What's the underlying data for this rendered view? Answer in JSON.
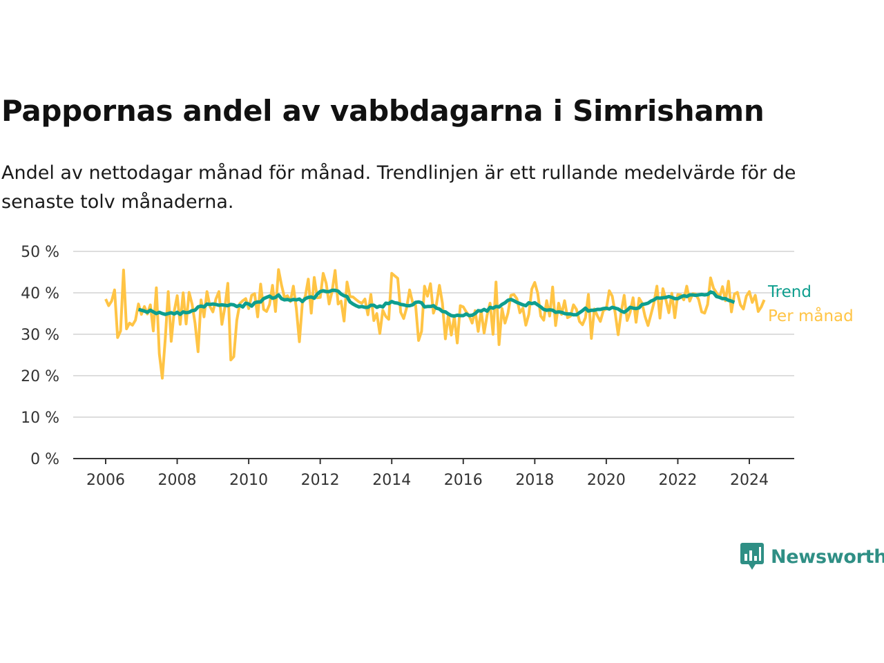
{
  "title": "Pappornas andel av vabbdagarna i Simrishamn",
  "subtitle": "Andel av nettodagar månad för månad. Trendlinjen är ett rullande medelvärde för de senaste tolv månaderna.",
  "brand": {
    "name": "Newsworthy",
    "color": "#2f8f85",
    "icon": "newsworthy-logo-icon"
  },
  "chart_data": {
    "type": "line",
    "ylim": [
      0,
      50
    ],
    "yticks": [
      0,
      10,
      20,
      30,
      40,
      50
    ],
    "ytick_labels": [
      "0 %",
      "10 %",
      "20 %",
      "30 %",
      "40 %",
      "50 %"
    ],
    "xlim": [
      2006,
      2024.5
    ],
    "xticks": [
      2006,
      2008,
      2010,
      2012,
      2014,
      2016,
      2018,
      2020,
      2022,
      2024
    ],
    "xtick_labels": [
      "2006",
      "2008",
      "2010",
      "2012",
      "2014",
      "2016",
      "2018",
      "2020",
      "2022",
      "2024"
    ],
    "grid": true,
    "legend": "right",
    "start": "2006-01",
    "series": [
      {
        "name": "Trend",
        "color": "#0e9e8e",
        "start": "2006-12",
        "values": [
          36,
          35.8,
          35.6,
          35.3,
          35.8,
          35.4,
          35,
          35.3,
          35,
          34.8,
          35,
          35.2,
          34.9,
          35.3,
          34.8,
          35.4,
          35.2,
          35.3,
          35.7,
          35.8,
          36.6,
          36.8,
          36.6,
          37.3,
          37.2,
          37.3,
          37.2,
          37,
          37.1,
          37,
          36.9,
          37.2,
          37.1,
          36.7,
          37,
          36.6,
          37.5,
          37.3,
          36.8,
          37.6,
          37.8,
          37.8,
          38.6,
          38.9,
          39.2,
          38.7,
          38.9,
          39.5,
          38.6,
          38.3,
          38.4,
          38.2,
          38.4,
          38.3,
          38.5,
          37.9,
          38.6,
          38.9,
          39,
          38.7,
          39.7,
          40.3,
          40.5,
          40.3,
          40.3,
          40.6,
          40.6,
          40.4,
          39.7,
          39.3,
          39.1,
          37.8,
          37.3,
          36.9,
          36.6,
          36.7,
          36.5,
          36.5,
          37,
          37,
          36.5,
          36.8,
          36.6,
          37.5,
          37.4,
          37.9,
          37.6,
          37.5,
          37.2,
          37.1,
          36.9,
          36.9,
          37.1,
          37.7,
          37.8,
          37.6,
          36.6,
          36.7,
          36.7,
          36.9,
          36.3,
          36.1,
          35.5,
          35.4,
          34.9,
          34.5,
          34.4,
          34.6,
          34.5,
          34.5,
          34.9,
          34.5,
          34.6,
          35,
          35.7,
          35.6,
          36,
          35.6,
          36.5,
          36.3,
          36.7,
          36.6,
          37.2,
          37.6,
          38.2,
          38.4,
          38.1,
          37.7,
          37.4,
          37.1,
          36.9,
          37.6,
          37.4,
          37.6,
          37.1,
          36.6,
          36,
          35.8,
          35.9,
          35.8,
          35.3,
          35.4,
          35.3,
          35,
          34.9,
          34.9,
          34.7,
          34.7,
          35.2,
          35.7,
          36.3,
          35.6,
          35.8,
          35.8,
          36,
          36,
          36.2,
          36.3,
          36.1,
          36.5,
          36.3,
          36.1,
          35.6,
          35.3,
          35.8,
          36.5,
          36.3,
          36.2,
          36.4,
          37.2,
          37.3,
          37.5,
          38,
          38.3,
          38.8,
          38.7,
          38.8,
          38.9,
          39.1,
          38.9,
          38.6,
          38.6,
          39,
          39.3,
          39.1,
          39.5,
          39.5,
          39.4,
          39.5,
          39.6,
          39.5,
          39.6,
          40.2,
          40,
          39.1,
          38.9,
          38.6,
          38.6,
          38.2,
          38,
          37.7
        ]
      },
      {
        "name": "Per månad",
        "color": "#ffc445",
        "start": "2006-01",
        "values": [
          38.5,
          36.9,
          38,
          40.7,
          29.2,
          30.8,
          45.5,
          31.3,
          32.7,
          32.2,
          33.4,
          37.3,
          34.8,
          36.7,
          34.9,
          37.1,
          30.8,
          41.2,
          25.3,
          19.4,
          28.9,
          40.3,
          28.3,
          35.5,
          39.3,
          32.4,
          40,
          32.5,
          40.1,
          37.3,
          32.7,
          25.8,
          38.3,
          34.2,
          40.3,
          36.7,
          35.4,
          38.5,
          40.3,
          32.4,
          36.5,
          42.3,
          23.8,
          24.6,
          33.4,
          37.4,
          38.1,
          38.6,
          36.2,
          39.4,
          39.8,
          34.2,
          42.1,
          36,
          35.5,
          37.2,
          41.8,
          35.5,
          45.6,
          41.9,
          38.9,
          39.3,
          37.9,
          41.6,
          36.2,
          28.2,
          37.5,
          39.2,
          43.3,
          35.1,
          43.7,
          38.8,
          38.9,
          44.7,
          42.3,
          37.3,
          40.4,
          45.4,
          37.3,
          38,
          33.2,
          42.6,
          39.1,
          39,
          38.4,
          37.8,
          37.5,
          38.5,
          34.7,
          39.6,
          33.3,
          35,
          30.2,
          35.8,
          34.3,
          33.6,
          44.7,
          44.1,
          43.5,
          35.3,
          33.8,
          36.4,
          40.7,
          37.7,
          37.2,
          28.5,
          30.7,
          41.6,
          39.2,
          42.2,
          35.1,
          37.2,
          41.8,
          37.5,
          28.9,
          34.8,
          29.8,
          34.3,
          27.9,
          36.9,
          36.6,
          35.4,
          34.4,
          32.7,
          35.7,
          30.7,
          35.7,
          30.3,
          34.6,
          37.5,
          30,
          42.6,
          27.5,
          36.2,
          32.7,
          35.1,
          39.4,
          39.6,
          38.6,
          35.2,
          36.3,
          32.2,
          34.8,
          40.9,
          42.5,
          39.9,
          34.4,
          33.4,
          38.1,
          34.4,
          41.4,
          32.1,
          37.5,
          34.8,
          38.1,
          34,
          34.4,
          37.1,
          36,
          33.1,
          32.3,
          34,
          39.6,
          29,
          36.1,
          34.5,
          33.1,
          35.7,
          36.1,
          40.5,
          39.2,
          35.1,
          29.9,
          35.4,
          39.4,
          33.3,
          35.3,
          38.8,
          32.9,
          38.7,
          37.5,
          34.3,
          32.1,
          34.8,
          37.6,
          41.6,
          33.9,
          41,
          38.3,
          35.2,
          39.9,
          34,
          39.6,
          39.5,
          38.3,
          41.6,
          38,
          39.8,
          39.7,
          38.4,
          35.4,
          35.1,
          37.2,
          43.6,
          41.1,
          40,
          38.9,
          41.5,
          38.1,
          42.8,
          35.4,
          39.7,
          40.1,
          37.1,
          36.1,
          39.2,
          40.3,
          37.7,
          39.4,
          35.5,
          36.6,
          38.3
        ]
      }
    ]
  }
}
